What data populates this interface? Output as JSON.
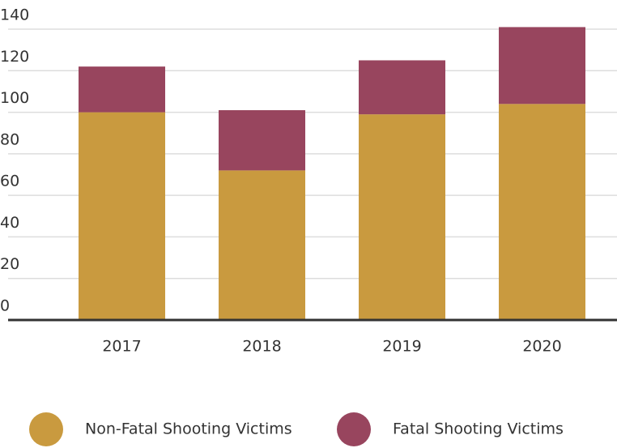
{
  "chart_data": {
    "type": "stacked_bar",
    "categories": [
      "2017",
      "2018",
      "2019",
      "2020"
    ],
    "series": [
      {
        "name": "Non-Fatal Shooting Victims",
        "color": "#c99a3f",
        "values": [
          100,
          72,
          99,
          104
        ]
      },
      {
        "name": "Fatal Shooting Victims",
        "color": "#98455e",
        "values": [
          22,
          29,
          26,
          37
        ]
      }
    ],
    "ylim": [
      0,
      140
    ],
    "yticks": [
      0,
      20,
      40,
      60,
      80,
      100,
      120,
      140
    ],
    "grid": true,
    "legend": "bottom"
  }
}
